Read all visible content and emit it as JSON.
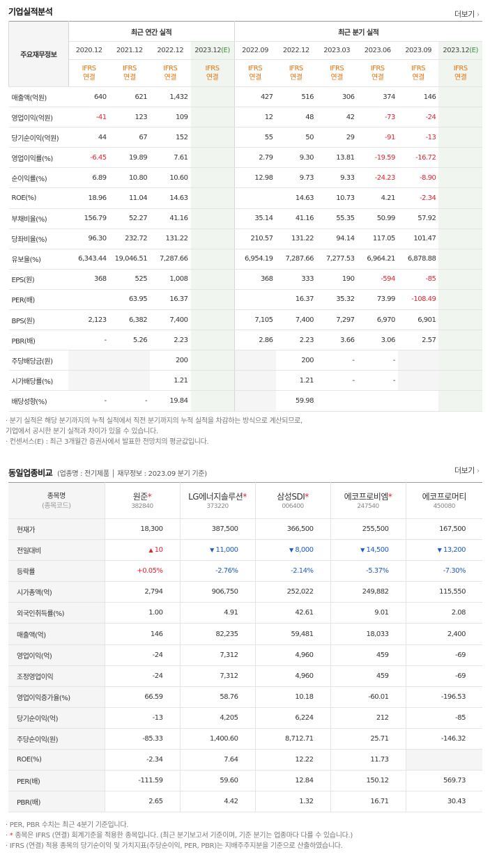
{
  "section1": {
    "title": "기업실적분석",
    "more": "더보기",
    "corner_label": "주요재무정보",
    "annual_header": "최근 연간 실적",
    "quarter_header": "최근 분기 실적",
    "annual_periods": [
      "2020.12",
      "2021.12",
      "2022.12",
      "2023.12"
    ],
    "quarter_periods": [
      "2022.09",
      "2022.12",
      "2023.03",
      "2023.06",
      "2023.09",
      "2023.12"
    ],
    "estimate_mark": "(E)",
    "ifrs_top": "IFRS",
    "ifrs_bottom": "연결",
    "rows": [
      {
        "label": "매출액(억원)",
        "annual": [
          "640",
          "621",
          "1,432",
          ""
        ],
        "quarter": [
          "427",
          "516",
          "306",
          "374",
          "146",
          ""
        ]
      },
      {
        "label": "영업이익(억원)",
        "annual": [
          "-41",
          "123",
          "109",
          ""
        ],
        "quarter": [
          "12",
          "48",
          "42",
          "-73",
          "-24",
          ""
        ]
      },
      {
        "label": "당기순이익(억원)",
        "annual": [
          "44",
          "67",
          "152",
          ""
        ],
        "quarter": [
          "55",
          "50",
          "29",
          "-91",
          "-13",
          ""
        ]
      },
      {
        "label": "영업이익률(%)",
        "annual": [
          "-6.45",
          "19.89",
          "7.61",
          ""
        ],
        "quarter": [
          "2.79",
          "9.30",
          "13.81",
          "-19.59",
          "-16.72",
          ""
        ]
      },
      {
        "label": "순이익률(%)",
        "annual": [
          "6.89",
          "10.80",
          "10.60",
          ""
        ],
        "quarter": [
          "12.98",
          "9.73",
          "9.33",
          "-24.23",
          "-8.90",
          ""
        ]
      },
      {
        "label": "ROE(%)",
        "annual": [
          "18.96",
          "11.04",
          "14.63",
          ""
        ],
        "quarter": [
          "",
          "14.63",
          "10.73",
          "4.21",
          "-2.34",
          ""
        ]
      },
      {
        "label": "부채비율(%)",
        "annual": [
          "156.79",
          "52.27",
          "41.16",
          ""
        ],
        "quarter": [
          "35.14",
          "41.16",
          "55.35",
          "50.99",
          "57.92",
          ""
        ]
      },
      {
        "label": "당좌비율(%)",
        "annual": [
          "96.30",
          "232.72",
          "131.22",
          ""
        ],
        "quarter": [
          "210.57",
          "131.22",
          "94.14",
          "117.05",
          "101.47",
          ""
        ]
      },
      {
        "label": "유보율(%)",
        "annual": [
          "6,343.44",
          "19,046.51",
          "7,287.66",
          ""
        ],
        "quarter": [
          "6,954.19",
          "7,287.66",
          "7,277.53",
          "6,964.21",
          "6,878.88",
          ""
        ]
      },
      {
        "label": "EPS(원)",
        "annual": [
          "368",
          "525",
          "1,008",
          ""
        ],
        "quarter": [
          "368",
          "333",
          "190",
          "-594",
          "-85",
          ""
        ]
      },
      {
        "label": "PER(배)",
        "annual": [
          "",
          "63.95",
          "16.37",
          ""
        ],
        "quarter": [
          "",
          "16.37",
          "35.32",
          "73.99",
          "-108.49",
          ""
        ]
      },
      {
        "label": "BPS(원)",
        "annual": [
          "2,123",
          "6,382",
          "7,400",
          ""
        ],
        "quarter": [
          "7,105",
          "7,400",
          "7,297",
          "6,970",
          "6,901",
          ""
        ]
      },
      {
        "label": "PBR(배)",
        "annual": [
          "-",
          "5.26",
          "2.23",
          ""
        ],
        "quarter": [
          "2.86",
          "2.23",
          "3.66",
          "3.06",
          "2.57",
          ""
        ]
      },
      {
        "label": "주당배당금(원)",
        "annual": [
          "",
          "",
          "200",
          ""
        ],
        "quarter": [
          "",
          "200",
          "-",
          "-",
          "",
          ""
        ],
        "empty_annual": [
          0,
          1
        ],
        "empty_quarter": [
          0,
          4
        ]
      },
      {
        "label": "시가배당률(%)",
        "annual": [
          "",
          "",
          "1.21",
          ""
        ],
        "quarter": [
          "",
          "1.21",
          "-",
          "-",
          "",
          ""
        ],
        "empty_annual": [
          0,
          1
        ],
        "empty_quarter": [
          0,
          4
        ]
      },
      {
        "label": "배당성향(%)",
        "annual": [
          "-",
          "-",
          "19.84",
          ""
        ],
        "quarter": [
          "",
          "59.98",
          "",
          "",
          "",
          ""
        ],
        "empty_quarter": [
          0
        ]
      }
    ],
    "notes": [
      "· 분기 실적은 해당 분기까지의 누적 실적에서 직전 분기까지의 누적 실적을 차감하는 방식으로 계산되므로,",
      "  기업에서 공시한 분기 실적과 차이가 있을 수 있습니다.",
      "· 컨센서스(E) : 최근 3개월간 증권사에서 발표한 전망치의 평균값입니다."
    ]
  },
  "section2": {
    "title": "동일업종비교",
    "subtitle": "(업종명 : 전기제품 │ 재무정보 : 2023.09 분기 기준)",
    "more": "더보기",
    "corner_name": "종목명",
    "corner_code": "(종목코드)",
    "companies": [
      {
        "name": "원준",
        "code": "382840",
        "star": true
      },
      {
        "name": "LG에너지솔루션",
        "code": "373220",
        "star": true
      },
      {
        "name": "삼성SDI",
        "code": "006400",
        "star": true
      },
      {
        "name": "에코프로비엠",
        "code": "247540",
        "star": true
      },
      {
        "name": "에코프로머티",
        "code": "450080",
        "star": false
      }
    ],
    "rows": [
      {
        "label": "현재가",
        "values": [
          "18,300",
          "387,500",
          "366,500",
          "255,500",
          "167,500"
        ]
      },
      {
        "label": "전일대비",
        "values": [
          "10",
          "11,000",
          "8,000",
          "14,500",
          "13,200"
        ],
        "dirs": [
          "up",
          "dn",
          "dn",
          "dn",
          "dn"
        ]
      },
      {
        "label": "등락률",
        "values": [
          "+0.05%",
          "-2.76%",
          "-2.14%",
          "-5.37%",
          "-7.30%"
        ],
        "dirs": [
          "up",
          "dn",
          "dn",
          "dn",
          "dn"
        ]
      },
      {
        "label": "시가총액(억)",
        "values": [
          "2,794",
          "906,750",
          "252,022",
          "249,882",
          "115,550"
        ]
      },
      {
        "label": "외국인취득률(%)",
        "values": [
          "1.00",
          "4.91",
          "42.61",
          "9.01",
          "2.08"
        ]
      },
      {
        "label": "매출액(억)",
        "values": [
          "146",
          "82,235",
          "59,481",
          "18,033",
          "2,400"
        ]
      },
      {
        "label": "영업이익(억)",
        "values": [
          "-24",
          "7,312",
          "4,960",
          "459",
          "-69"
        ]
      },
      {
        "label": "조정영업이익",
        "values": [
          "-24",
          "7,312",
          "4,960",
          "459",
          "-69"
        ]
      },
      {
        "label": "영업이익증가율(%)",
        "values": [
          "66.59",
          "58.76",
          "10.18",
          "-60.01",
          "-196.53"
        ]
      },
      {
        "label": "당기순이익(억)",
        "values": [
          "-13",
          "4,205",
          "6,224",
          "212",
          "-85"
        ]
      },
      {
        "label": "주당순이익(원)",
        "values": [
          "-85.33",
          "1,400.60",
          "8,712.71",
          "25.71",
          "-146.32"
        ]
      },
      {
        "label": "ROE(%)",
        "values": [
          "-2.34",
          "7.64",
          "12.22",
          "11.73",
          ""
        ],
        "empty": [
          4
        ]
      },
      {
        "label": "PER(배)",
        "values": [
          "-111.59",
          "59.60",
          "12.84",
          "150.12",
          "569.73"
        ]
      },
      {
        "label": "PBR(배)",
        "values": [
          "2.65",
          "4.42",
          "1.32",
          "16.71",
          "30.43"
        ]
      }
    ],
    "notes": [
      "· PER, PBR 수치는 최근 4분기 기준입니다.",
      "· * 종목은 IFRS (연결) 회계기준을 적용한 종목입니다. (최근 분기보고서 기준이며, 기준 분기는 업종마다 다를 수 있습니다.)",
      "· IFRS (연결) 적용 종목의 당기순이익 및 가치지표(주당순이익, PER, PBR)는 지배주주지분을 기준으로 산출하였습니다."
    ]
  }
}
